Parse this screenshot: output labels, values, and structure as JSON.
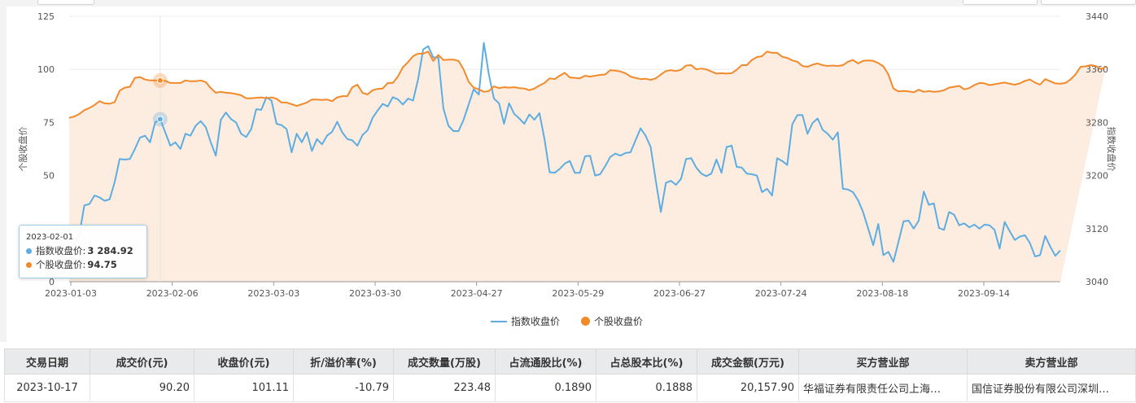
{
  "chart_data": {
    "type": "line",
    "y_left": {
      "label": "个股收盘价",
      "ticks": [
        "125",
        "100",
        "75",
        "50",
        "0"
      ],
      "min": 0,
      "max": 125
    },
    "y_right": {
      "label": "指数收盘价",
      "ticks": [
        "3440",
        "3360",
        "3280",
        "3200",
        "3120",
        "3040"
      ],
      "min": 3040,
      "max": 3440
    },
    "x_ticks": [
      "2023-01-03",
      "2023-02-06",
      "2023-03-03",
      "2023-03-30",
      "2023-04-27",
      "2023-05-29",
      "2023-06-27",
      "2023-07-24",
      "2023-08-18",
      "2023-09-14"
    ],
    "grid": "horizontal",
    "legend_position": "bottom",
    "series": [
      {
        "name": "指数收盘价",
        "axis": "right",
        "color": "#5dade2",
        "values": [
          3085,
          3095,
          3110,
          3155,
          3157,
          3170,
          3167,
          3162,
          3164,
          3190,
          3225,
          3224,
          3225,
          3240,
          3257,
          3260,
          3250,
          3280,
          3285,
          3265,
          3245,
          3250,
          3240,
          3263,
          3260,
          3275,
          3282,
          3273,
          3250,
          3230,
          3284,
          3295,
          3285,
          3280,
          3263,
          3258,
          3270,
          3300,
          3299,
          3318,
          3313,
          3278,
          3276,
          3270,
          3235,
          3263,
          3250,
          3265,
          3237,
          3255,
          3247,
          3260,
          3266,
          3281,
          3265,
          3255,
          3253,
          3245,
          3261,
          3268,
          3287,
          3298,
          3308,
          3304,
          3318,
          3315,
          3307,
          3316,
          3313,
          3345,
          3390,
          3395,
          3378,
          3378,
          3301,
          3275,
          3267,
          3267,
          3284,
          3307,
          3330,
          3322,
          3400,
          3352,
          3316,
          3309,
          3278,
          3309,
          3293,
          3286,
          3278,
          3292,
          3284,
          3294,
          3255,
          3205,
          3204,
          3210,
          3218,
          3222,
          3204,
          3204,
          3229,
          3230,
          3200,
          3202,
          3214,
          3228,
          3233,
          3230,
          3234,
          3235,
          3253,
          3271,
          3260,
          3243,
          3192,
          3145,
          3189,
          3192,
          3186,
          3195,
          3225,
          3226,
          3212,
          3203,
          3199,
          3203,
          3224,
          3204,
          3243,
          3245,
          3213,
          3212,
          3203,
          3202,
          3200,
          3175,
          3180,
          3170,
          3226,
          3222,
          3216,
          3277,
          3291,
          3291,
          3263,
          3279,
          3286,
          3269,
          3263,
          3254,
          3265,
          3180,
          3179,
          3175,
          3163,
          3145,
          3120,
          3095,
          3127,
          3080,
          3085,
          3070,
          3100,
          3131,
          3132,
          3120,
          3132,
          3176,
          3156,
          3158,
          3121,
          3118,
          3145,
          3141,
          3125,
          3128,
          3122,
          3126,
          3120,
          3126,
          3125,
          3118,
          3090,
          3130,
          3116,
          3103,
          3108,
          3110,
          3098,
          3078,
          3080,
          3109,
          3093,
          3079,
          3087
        ]
      },
      {
        "name": "个股收盘价",
        "axis": "left",
        "color": "#f28a2c",
        "values": [
          77.2,
          77.8,
          79,
          80.8,
          81.8,
          83.2,
          85,
          84,
          83.8,
          84.6,
          90,
          91.4,
          91.8,
          96,
          96.4,
          95.2,
          94.8,
          94.8,
          94.75,
          94.6,
          93.6,
          93.6,
          93.6,
          94.8,
          94.4,
          94.4,
          94.8,
          94,
          91.2,
          89,
          89.4,
          89,
          88.8,
          88.4,
          87.8,
          86.4,
          86.4,
          86.6,
          86.8,
          86.4,
          86.8,
          86.2,
          84.4,
          84.4,
          83.6,
          82.8,
          83.6,
          84.4,
          85.8,
          85.8,
          85.6,
          85.8,
          85,
          86.8,
          87.4,
          87.4,
          91.6,
          92.8,
          89,
          88.2,
          90.2,
          90.8,
          91,
          93.6,
          93.6,
          96.6,
          101,
          103.4,
          106.2,
          107.4,
          107.4,
          108.4,
          104,
          106.8,
          104.4,
          104.6,
          104.6,
          104,
          100,
          94.2,
          91.4,
          90.6,
          89.4,
          89.8,
          92,
          91.2,
          91.6,
          91.4,
          91.6,
          91.2,
          91,
          90.2,
          91,
          92.4,
          93.6,
          95.8,
          95.4,
          97,
          98.4,
          96.2,
          96,
          95.8,
          97,
          96.6,
          97,
          97.4,
          97.6,
          99.6,
          99.4,
          99,
          98.2,
          96.6,
          96,
          95.4,
          95.6,
          95,
          95.8,
          97.6,
          99.2,
          99.6,
          99.2,
          99.8,
          101.8,
          102,
          100,
          100.4,
          100,
          99,
          98,
          98.2,
          98,
          98.2,
          99.8,
          102,
          102,
          104.4,
          105.8,
          106.2,
          108.4,
          107.8,
          107.8,
          106,
          105.4,
          104.2,
          103.6,
          101.6,
          101.2,
          102.2,
          102.8,
          102,
          101.6,
          101.8,
          101.6,
          102,
          103.6,
          104.4,
          102.8,
          104,
          104.2,
          104,
          103,
          101.4,
          97.6,
          91,
          89.6,
          89.8,
          89.6,
          89.2,
          90.4,
          89.4,
          89.8,
          89.4,
          89.6,
          90.2,
          91.4,
          91.8,
          92.2,
          90.6,
          91.2,
          92.6,
          93.6,
          93.4,
          92.6,
          93,
          93.4,
          93.8,
          93.2,
          92.8,
          93.4,
          94.6,
          95.2,
          93.8,
          92.8,
          95.4,
          94.4,
          93.4,
          93.2,
          93.6,
          95.2,
          97.6,
          101.2,
          101.4,
          102,
          101.6,
          100.2,
          101.11
        ]
      }
    ],
    "tooltip": {
      "date": "2023-02-01",
      "index_label": "指数收盘价:",
      "index_value": "3 284.92",
      "stock_label": "个股收盘价:",
      "stock_value": "94.75"
    }
  },
  "table": {
    "headers": [
      "交易日期",
      "成交价(元)",
      "收盘价(元)",
      "折/溢价率(%)",
      "成交数量(万股)",
      "占流通股比(%)",
      "占总股本比(%)",
      "成交金额(万元)",
      "买方营业部",
      "卖方营业部"
    ],
    "rows": [
      [
        "2023-10-17",
        "90.20",
        "101.11",
        "-10.79",
        "223.48",
        "0.1890",
        "0.1888",
        "20,157.90",
        "华福证券有限责任公司上海…",
        "国信证券股份有限公司深圳…"
      ]
    ]
  },
  "colors": {
    "index_line": "#5dade2",
    "stock_line": "#f28a2c",
    "area_fill": "#fdebdd"
  },
  "icons": [
    "tooltip-marker-dot"
  ]
}
